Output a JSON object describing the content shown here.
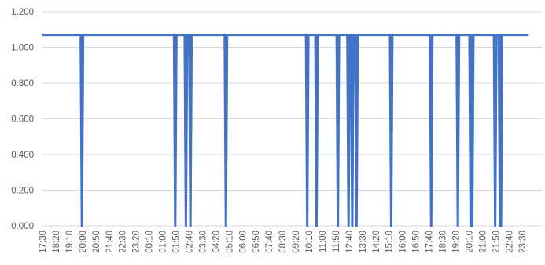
{
  "chart_data": {
    "type": "line",
    "title": "",
    "xlabel": "",
    "ylabel": "",
    "ylim": [
      0,
      1.2
    ],
    "grid": true,
    "legend": "none",
    "line_color": "#4472C4",
    "y_ticks": [
      "0.000",
      "0.200",
      "0.400",
      "0.600",
      "0.800",
      "1.000",
      "1.200"
    ],
    "x_ticks": [
      "17:30",
      "18:20",
      "19:10",
      "20:00",
      "20:50",
      "21:40",
      "22:30",
      "23:20",
      "00:10",
      "01:00",
      "01:50",
      "02:40",
      "03:30",
      "04:20",
      "05:10",
      "06:00",
      "06:50",
      "07:40",
      "08:30",
      "09:20",
      "10:10",
      "11:00",
      "11:50",
      "12:40",
      "13:30",
      "14:20",
      "15:10",
      "16:00",
      "16:50",
      "17:40",
      "18:30",
      "19:20",
      "20:10",
      "21:00",
      "21:50",
      "22:40",
      "23:30"
    ],
    "baseline_value": 1.07,
    "drops_to_zero_at": [
      "19:58",
      "01:48",
      "02:28",
      "02:45",
      "04:58",
      "10:03",
      "10:38",
      "11:58",
      "12:38",
      "12:52",
      "13:08",
      "15:18",
      "17:48",
      "19:28",
      "20:16",
      "20:22",
      "21:48",
      "22:06",
      "22:10"
    ],
    "series": [
      {
        "values": []
      }
    ]
  }
}
